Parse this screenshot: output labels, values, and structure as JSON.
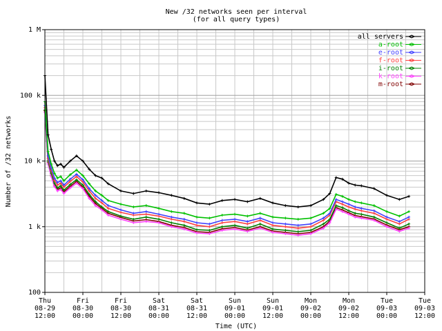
{
  "chart_data": {
    "type": "line",
    "title": "New /32 networks seen per interval",
    "subtitle": "(for all query types)",
    "xlabel": "Time (UTC)",
    "ylabel": "Number of /32 networks",
    "y_scale": "log",
    "ylim": [
      100,
      1000000
    ],
    "y_ticks": [
      {
        "value": 100,
        "label": "100"
      },
      {
        "value": 1000,
        "label": "1 k"
      },
      {
        "value": 10000,
        "label": "10 k"
      },
      {
        "value": 100000,
        "label": "100 k"
      },
      {
        "value": 1000000,
        "label": "1 M"
      }
    ],
    "xlim": [
      "2006-08-29 12:00",
      "2006-09-03 12:00"
    ],
    "x_ticks": [
      {
        "day": "Thu",
        "date": "08-29",
        "time": "12:00"
      },
      {
        "day": "Fri",
        "date": "08-30",
        "time": "00:00"
      },
      {
        "day": "Fri",
        "date": "08-30",
        "time": "12:00"
      },
      {
        "day": "Sat",
        "date": "08-31",
        "time": "00:00"
      },
      {
        "day": "Sat",
        "date": "08-31",
        "time": "12:00"
      },
      {
        "day": "Sun",
        "date": "09-01",
        "time": "00:00"
      },
      {
        "day": "Sun",
        "date": "09-01",
        "time": "12:00"
      },
      {
        "day": "Mon",
        "date": "09-02",
        "time": "00:00"
      },
      {
        "day": "Mon",
        "date": "09-02",
        "time": "12:00"
      },
      {
        "day": "Tue",
        "date": "09-03",
        "time": "00:00"
      },
      {
        "day": "Tue",
        "date": "09-03",
        "time": "12:00"
      }
    ],
    "grid": true,
    "legend_position": "top-right",
    "x_hours": [
      0,
      1,
      2,
      3,
      4,
      5,
      6,
      8,
      10,
      12,
      14,
      16,
      18,
      20,
      24,
      28,
      32,
      36,
      40,
      44,
      48,
      52,
      56,
      60,
      64,
      68,
      72,
      76,
      80,
      84,
      88,
      90,
      92,
      94,
      96,
      98,
      100,
      104,
      108,
      112,
      115
    ],
    "series": [
      {
        "name": "all servers",
        "color": "#000000",
        "values": [
          200000,
          25000,
          15000,
          10000,
          8500,
          9000,
          8000,
          10000,
          12000,
          10000,
          7500,
          6000,
          5500,
          4500,
          3500,
          3200,
          3500,
          3300,
          3000,
          2700,
          2300,
          2200,
          2500,
          2600,
          2400,
          2700,
          2300,
          2100,
          2000,
          2100,
          2600,
          3200,
          5600,
          5300,
          4600,
          4300,
          4200,
          3800,
          3000,
          2600,
          2900
        ]
      },
      {
        "name": "a-root",
        "color": "#00c000",
        "values": [
          80000,
          14000,
          9000,
          6500,
          5500,
          5800,
          5000,
          6200,
          7300,
          6000,
          4500,
          3500,
          3000,
          2500,
          2200,
          2000,
          2100,
          1900,
          1700,
          1600,
          1400,
          1350,
          1500,
          1550,
          1450,
          1600,
          1400,
          1350,
          1300,
          1350,
          1600,
          1900,
          3100,
          2900,
          2600,
          2400,
          2300,
          2100,
          1700,
          1450,
          1700
        ]
      },
      {
        "name": "e-root",
        "color": "#4040ff",
        "values": [
          70000,
          12000,
          7800,
          5500,
          4700,
          5000,
          4300,
          5300,
          6300,
          5200,
          3800,
          3000,
          2500,
          2100,
          1800,
          1600,
          1700,
          1550,
          1400,
          1300,
          1150,
          1100,
          1250,
          1300,
          1200,
          1350,
          1150,
          1100,
          1050,
          1100,
          1350,
          1600,
          2600,
          2400,
          2200,
          2000,
          1900,
          1750,
          1400,
          1200,
          1400
        ]
      },
      {
        "name": "f-root",
        "color": "#ff4040",
        "values": [
          65000,
          11000,
          7200,
          5100,
          4300,
          4600,
          4000,
          4900,
          5800,
          4800,
          3500,
          2700,
          2300,
          1900,
          1650,
          1500,
          1550,
          1450,
          1300,
          1200,
          1050,
          1000,
          1150,
          1200,
          1100,
          1250,
          1050,
          1000,
          950,
          1000,
          1250,
          1500,
          2400,
          2200,
          2000,
          1850,
          1750,
          1600,
          1300,
          1100,
          1300
        ]
      },
      {
        "name": "i-root",
        "color": "#008000",
        "values": [
          60000,
          10000,
          6500,
          4600,
          3900,
          4200,
          3600,
          4400,
          5200,
          4300,
          3100,
          2400,
          2000,
          1700,
          1450,
          1300,
          1400,
          1300,
          1150,
          1050,
          900,
          880,
          1000,
          1050,
          950,
          1100,
          920,
          880,
          840,
          880,
          1100,
          1300,
          2100,
          1950,
          1750,
          1600,
          1550,
          1400,
          1150,
          950,
          1100
        ]
      },
      {
        "name": "k-root",
        "color": "#ff40ff",
        "values": [
          55000,
          9000,
          5800,
          4100,
          3500,
          3700,
          3200,
          3900,
          4600,
          3800,
          2700,
          2100,
          1800,
          1500,
          1300,
          1150,
          1200,
          1150,
          1000,
          920,
          800,
          780,
          880,
          920,
          850,
          950,
          820,
          780,
          740,
          780,
          950,
          1150,
          1850,
          1700,
          1550,
          1400,
          1350,
          1250,
          1000,
          850,
          950
        ]
      },
      {
        "name": "m-root",
        "color": "#800000",
        "values": [
          58000,
          9500,
          6100,
          4300,
          3700,
          3900,
          3400,
          4100,
          4900,
          4000,
          2900,
          2250,
          1900,
          1600,
          1380,
          1220,
          1280,
          1200,
          1050,
          970,
          840,
          820,
          930,
          970,
          890,
          1000,
          860,
          820,
          780,
          820,
          1000,
          1220,
          1950,
          1800,
          1630,
          1480,
          1420,
          1310,
          1060,
          900,
          1000
        ]
      }
    ]
  }
}
